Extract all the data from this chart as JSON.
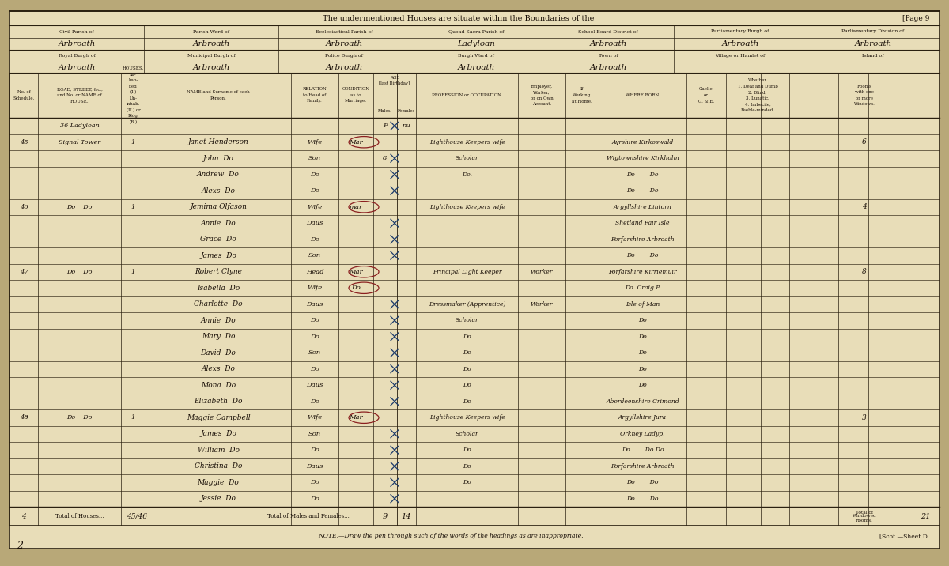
{
  "bg_outer": "#b8a878",
  "paper_color": "#e8ddb8",
  "paper_color2": "#ddd0a0",
  "line_color": "#2a2010",
  "text_color": "#1a1008",
  "hand_color": "#1a1008",
  "blue_ink": "#1a3a6a",
  "red_color": "#8b2020",
  "title_text": "The undermentioned Houses are situate within the Boundaries of the",
  "page_ref": "[Page 9",
  "h1_labels": [
    "Civil Parish of",
    "Parish Ward of",
    "Ecclesiastical Parish of",
    "Quoad Sacra Parish of",
    "School Board District of",
    "Parliamentary Burgh of",
    "Parliamentary Division of"
  ],
  "h1_vals": [
    "Arbroath",
    "Arbroath",
    "Arbroath",
    "Ladyloan",
    "Arbroath",
    "Arbroath",
    "Arbroath"
  ],
  "h2_labels": [
    "Royal Burgh of",
    "Municipal Burgh of",
    "Police Burgh of",
    "Burgh Ward of",
    "Town of",
    "Village or Hamlet of",
    "Island of"
  ],
  "h2_vals": [
    "Arbroath",
    "Arbroath",
    "Arbroath",
    "Arbroath",
    "Arbroath",
    "",
    ""
  ],
  "rows": [
    {
      "sched": "",
      "road": "36 Ladyloan",
      "inh": "",
      "name": "",
      "rel": "",
      "cond": "",
      "agem": "F",
      "agef": "nu",
      "prof": "",
      "emp": "",
      "wh": "",
      "born": "",
      "rooms": ""
    },
    {
      "sched": "45",
      "road": "Signal Tower",
      "inh": "1",
      "name": "Janet Henderson",
      "rel": "Wife",
      "cond": "Mar",
      "agem": "",
      "agef": "",
      "prof": "Lighthouse Keepers wife",
      "emp": "",
      "wh": "",
      "born": "Ayrshire Kirkoswald",
      "rooms": "6"
    },
    {
      "sched": "",
      "road": "",
      "inh": "",
      "name": "John  Do",
      "rel": "Son",
      "cond": "",
      "agem": "8",
      "agef": "",
      "prof": "Scholar",
      "emp": "",
      "wh": "",
      "born": "Wigtownshire Kirkholm",
      "rooms": ""
    },
    {
      "sched": "",
      "road": "",
      "inh": "",
      "name": "Andrew  Do",
      "rel": "Do",
      "cond": "",
      "agem": "",
      "agef": "",
      "prof": "Do.",
      "emp": "",
      "wh": "",
      "born": "Do        Do",
      "rooms": ""
    },
    {
      "sched": "",
      "road": "",
      "inh": "",
      "name": "Alexs  Do",
      "rel": "Do",
      "cond": "",
      "agem": "",
      "agef": "",
      "prof": "",
      "emp": "",
      "wh": "",
      "born": "Do        Do",
      "rooms": ""
    },
    {
      "sched": "46",
      "road": "Do    Do",
      "inh": "1",
      "name": "Jemima Olfason",
      "rel": "Wife",
      "cond": "mar",
      "agem": "",
      "agef": "",
      "prof": "Lighthouse Keepers wife",
      "emp": "",
      "wh": "",
      "born": "Argyllshire Lintorn",
      "rooms": "4"
    },
    {
      "sched": "",
      "road": "",
      "inh": "",
      "name": "Annie  Do",
      "rel": "Daus",
      "cond": "",
      "agem": "",
      "agef": "",
      "prof": "",
      "emp": "",
      "wh": "",
      "born": "Shetland Fair Isle",
      "rooms": ""
    },
    {
      "sched": "",
      "road": "",
      "inh": "",
      "name": "Grace  Do",
      "rel": "Do",
      "cond": "",
      "agem": "",
      "agef": "",
      "prof": "",
      "emp": "",
      "wh": "",
      "born": "Forfarshire Arbroath",
      "rooms": ""
    },
    {
      "sched": "",
      "road": "",
      "inh": "",
      "name": "James  Do",
      "rel": "Son",
      "cond": "",
      "agem": "",
      "agef": "",
      "prof": "",
      "emp": "",
      "wh": "",
      "born": "Do        Do",
      "rooms": ""
    },
    {
      "sched": "47",
      "road": "Do    Do",
      "inh": "1",
      "name": "Robert Clyne",
      "rel": "Head",
      "cond": "Mar",
      "agem": "",
      "agef": "",
      "prof": "Principal Light Keeper",
      "emp": "Worker",
      "wh": "",
      "born": "Forfarshire Kirriemuir",
      "rooms": "8"
    },
    {
      "sched": "",
      "road": "",
      "inh": "",
      "name": "Isabella  Do",
      "rel": "Wife",
      "cond": "Do",
      "agem": "",
      "agef": "",
      "prof": "",
      "emp": "",
      "wh": "",
      "born": "Do  Craig P.",
      "rooms": ""
    },
    {
      "sched": "",
      "road": "",
      "inh": "",
      "name": "Charlotte  Do",
      "rel": "Daus",
      "cond": "",
      "agem": "",
      "agef": "",
      "prof": "Dressmaker (Apprentice)",
      "emp": "Worker",
      "wh": "",
      "born": "Isle of Man",
      "rooms": ""
    },
    {
      "sched": "",
      "road": "",
      "inh": "",
      "name": "Annie  Do",
      "rel": "Do",
      "cond": "",
      "agem": "",
      "agef": "",
      "prof": "Scholar",
      "emp": "",
      "wh": "",
      "born": "Do",
      "rooms": ""
    },
    {
      "sched": "",
      "road": "",
      "inh": "",
      "name": "Mary  Do",
      "rel": "Do",
      "cond": "",
      "agem": "",
      "agef": "",
      "prof": "Do",
      "emp": "",
      "wh": "",
      "born": "Do",
      "rooms": ""
    },
    {
      "sched": "",
      "road": "",
      "inh": "",
      "name": "David  Do",
      "rel": "Son",
      "cond": "",
      "agem": "",
      "agef": "",
      "prof": "Do",
      "emp": "",
      "wh": "",
      "born": "Do",
      "rooms": ""
    },
    {
      "sched": "",
      "road": "",
      "inh": "",
      "name": "Alexs  Do",
      "rel": "Do",
      "cond": "",
      "agem": "",
      "agef": "",
      "prof": "Do",
      "emp": "",
      "wh": "",
      "born": "Do",
      "rooms": ""
    },
    {
      "sched": "",
      "road": "",
      "inh": "",
      "name": "Mona  Do",
      "rel": "Daus",
      "cond": "",
      "agem": "",
      "agef": "",
      "prof": "Do",
      "emp": "",
      "wh": "",
      "born": "Do",
      "rooms": ""
    },
    {
      "sched": "",
      "road": "",
      "inh": "",
      "name": "Elizabeth  Do",
      "rel": "Do",
      "cond": "",
      "agem": "",
      "agef": "",
      "prof": "Do",
      "emp": "",
      "wh": "",
      "born": "Aberdeenshire Crimond",
      "rooms": ""
    },
    {
      "sched": "48",
      "road": "Do    Do",
      "inh": "1",
      "name": "Maggie Campbell",
      "rel": "Wife",
      "cond": "Mar",
      "agem": "",
      "agef": "",
      "prof": "Lighthouse Keepers wife",
      "emp": "",
      "wh": "",
      "born": "Argyllshire Jura",
      "rooms": "3"
    },
    {
      "sched": "",
      "road": "",
      "inh": "",
      "name": "James  Do",
      "rel": "Son",
      "cond": "",
      "agem": "",
      "agef": "",
      "prof": "Scholar",
      "emp": "",
      "wh": "",
      "born": "Orkney Ladyp.",
      "rooms": ""
    },
    {
      "sched": "",
      "road": "",
      "inh": "",
      "name": "William  Do",
      "rel": "Do",
      "cond": "",
      "agem": "",
      "agef": "",
      "prof": "Do",
      "emp": "",
      "wh": "",
      "born": "Do        Do Do",
      "rooms": ""
    },
    {
      "sched": "",
      "road": "",
      "inh": "",
      "name": "Christina  Do",
      "rel": "Daus",
      "cond": "",
      "agem": "",
      "agef": "",
      "prof": "Do",
      "emp": "",
      "wh": "",
      "born": "Forfarshire Arbroath",
      "rooms": ""
    },
    {
      "sched": "",
      "road": "",
      "inh": "",
      "name": "Maggie  Do",
      "rel": "Do",
      "cond": "",
      "agem": "",
      "agef": "",
      "prof": "Do",
      "emp": "",
      "wh": "",
      "born": "Do        Do",
      "rooms": ""
    },
    {
      "sched": "",
      "road": "",
      "inh": "",
      "name": "Jessie  Do",
      "rel": "Do",
      "cond": "",
      "agem": "",
      "agef": "",
      "prof": "",
      "emp": "",
      "wh": "",
      "born": "Do        Do",
      "rooms": ""
    }
  ],
  "foot_sched": "4",
  "foot_houses": "45/46",
  "foot_males": "9",
  "foot_females": "14",
  "foot_windowed": "21",
  "note": "NOTE.—Draw the pen through such of the words of the headings as are inappropriate.",
  "sheet": "[Scot.—Sheet D."
}
